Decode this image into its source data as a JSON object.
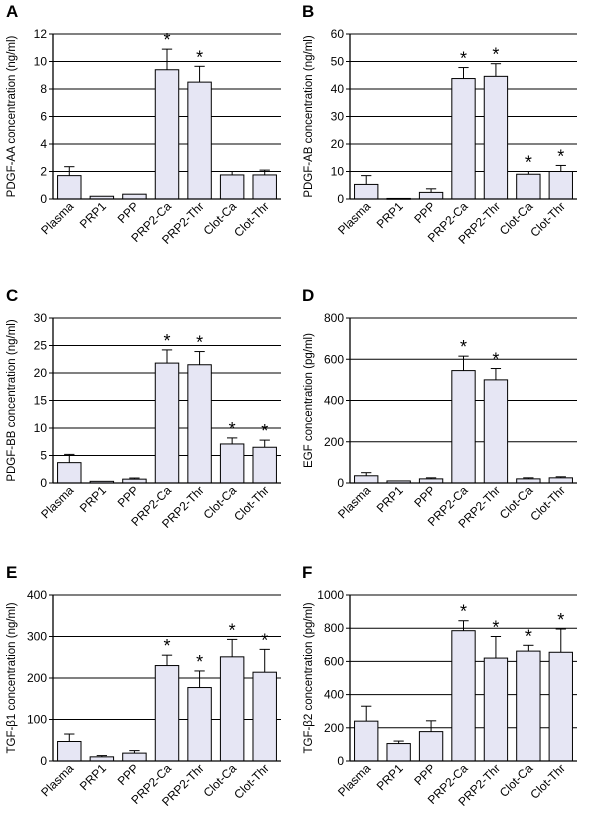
{
  "figure": {
    "categories": [
      "Plasma",
      "PRP1",
      "PPP",
      "PRP2-Ca",
      "PRP2-Thr",
      "Clot-Ca",
      "Clot-Thr"
    ],
    "colors": {
      "bar_fill": "#e6e6f4",
      "bar_stroke": "#000000",
      "gridline": "#000000"
    },
    "significance_marker": "*"
  },
  "chart_data": [
    {
      "panel": "A",
      "type": "bar",
      "ylabel": "PDGF-AA concentration (ng/ml)",
      "ylim": [
        0,
        12
      ],
      "yticks": [
        0,
        2,
        4,
        6,
        8,
        10,
        12
      ],
      "grid": true,
      "categories": [
        "Plasma",
        "PRP1",
        "PPP",
        "PRP2-Ca",
        "PRP2-Thr",
        "Clot-Ca",
        "Clot-Thr"
      ],
      "values": [
        1.7,
        0.2,
        0.35,
        9.4,
        8.5,
        1.75,
        1.75
      ],
      "errors": [
        0.65,
        0.05,
        0.05,
        1.5,
        1.15,
        0.25,
        0.35
      ],
      "significant": [
        false,
        false,
        false,
        true,
        true,
        false,
        false
      ]
    },
    {
      "panel": "B",
      "type": "bar",
      "ylabel": "PDGF-AB concentration (ng/ml)",
      "ylim": [
        0,
        60
      ],
      "yticks": [
        0,
        10,
        20,
        30,
        40,
        50,
        60
      ],
      "grid": true,
      "categories": [
        "Plasma",
        "PRP1",
        "PPP",
        "PRP2-Ca",
        "PRP2-Thr",
        "Clot-Ca",
        "Clot-Thr"
      ],
      "values": [
        5.3,
        0.2,
        2.4,
        43.8,
        44.6,
        9.0,
        10.0
      ],
      "errors": [
        3.2,
        0.1,
        1.3,
        4.0,
        4.6,
        1.0,
        2.2
      ],
      "significant": [
        false,
        false,
        false,
        true,
        true,
        true,
        true
      ]
    },
    {
      "panel": "C",
      "type": "bar",
      "ylabel": "PDGF-BB concentration (ng/ml)",
      "ylim": [
        0,
        30
      ],
      "yticks": [
        0,
        5,
        10,
        15,
        20,
        25,
        30
      ],
      "grid": true,
      "categories": [
        "Plasma",
        "PRP1",
        "PPP",
        "PRP2-Ca",
        "PRP2-Thr",
        "Clot-Ca",
        "Clot-Thr"
      ],
      "values": [
        3.7,
        0.3,
        0.7,
        21.8,
        21.5,
        7.1,
        6.5
      ],
      "errors": [
        1.5,
        0.1,
        0.2,
        2.4,
        2.4,
        1.1,
        1.3
      ],
      "significant": [
        false,
        false,
        false,
        true,
        true,
        true,
        true
      ]
    },
    {
      "panel": "D",
      "type": "bar",
      "ylabel": "EGF concentration (pg/ml)",
      "ylim": [
        0,
        800
      ],
      "yticks": [
        0,
        200,
        400,
        600,
        800
      ],
      "grid": true,
      "categories": [
        "Plasma",
        "PRP1",
        "PPP",
        "PRP2-Ca",
        "PRP2-Thr",
        "Clot-Ca",
        "Clot-Thr"
      ],
      "values": [
        35,
        10,
        20,
        545,
        500,
        20,
        25
      ],
      "errors": [
        15,
        3,
        5,
        70,
        55,
        5,
        5
      ],
      "significant": [
        false,
        false,
        false,
        true,
        true,
        false,
        false
      ]
    },
    {
      "panel": "E",
      "type": "bar",
      "ylabel": "TGF-β1 concentration (ng/ml)",
      "ylim": [
        0,
        400
      ],
      "yticks": [
        0,
        100,
        200,
        300,
        400
      ],
      "grid": true,
      "categories": [
        "Plasma",
        "PRP1",
        "PPP",
        "PRP2-Ca",
        "PRP2-Thr",
        "Clot-Ca",
        "Clot-Thr"
      ],
      "values": [
        47,
        10,
        19,
        230,
        177,
        251,
        214
      ],
      "errors": [
        18,
        3,
        6,
        25,
        40,
        42,
        55
      ],
      "significant": [
        false,
        false,
        false,
        true,
        true,
        true,
        true
      ]
    },
    {
      "panel": "F",
      "type": "bar",
      "ylabel": "TGF-β2 concentration (pg/ml)",
      "ylim": [
        0,
        1000
      ],
      "yticks": [
        0,
        200,
        400,
        600,
        800,
        1000
      ],
      "grid": true,
      "categories": [
        "Plasma",
        "PRP1",
        "PPP",
        "PRP2-Ca",
        "PRP2-Thr",
        "Clot-Ca",
        "Clot-Thr"
      ],
      "values": [
        240,
        105,
        177,
        785,
        620,
        662,
        655
      ],
      "errors": [
        90,
        15,
        65,
        60,
        130,
        35,
        140
      ],
      "significant": [
        false,
        false,
        false,
        true,
        true,
        true,
        true
      ]
    }
  ]
}
